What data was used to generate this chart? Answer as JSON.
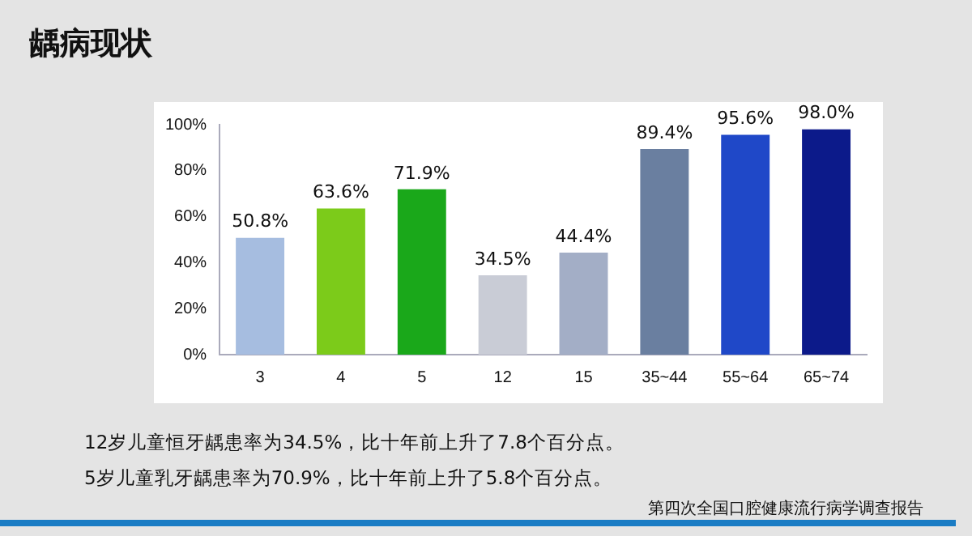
{
  "chart_data": {
    "type": "bar",
    "title": "龋病现状",
    "categories": [
      "3",
      "4",
      "5",
      "12",
      "15",
      "35~44",
      "55~64",
      "65~74"
    ],
    "values": [
      50.8,
      63.6,
      71.9,
      34.5,
      44.4,
      89.4,
      95.6,
      98.0
    ],
    "value_labels": [
      "50.8%",
      "63.6%",
      "71.9%",
      "34.5%",
      "44.4%",
      "89.4%",
      "95.6%",
      "98.0%"
    ],
    "colors": [
      "#a6bde0",
      "#7ccb1a",
      "#1aa81a",
      "#c9ccd6",
      "#a3aec6",
      "#6a7fa0",
      "#1f48c8",
      "#0c1a8a"
    ],
    "ylim": [
      0,
      100
    ],
    "yticks": [
      {
        "value": 0,
        "label": "0%"
      },
      {
        "value": 20,
        "label": "20%"
      },
      {
        "value": 40,
        "label": "40%"
      },
      {
        "value": 60,
        "label": "60%"
      },
      {
        "value": 80,
        "label": "80%"
      },
      {
        "value": 100,
        "label": "100%"
      }
    ],
    "grid": false,
    "legend": false,
    "annotations": [
      "12岁儿童恒牙龋患率为34.5%，比十年前上升了7.8个百分点。",
      "5岁儿童乳牙龋患率为70.9%，比十年前上升了5.8个百分点。",
      "第四次全国口腔健康流行病学调查报告"
    ]
  }
}
